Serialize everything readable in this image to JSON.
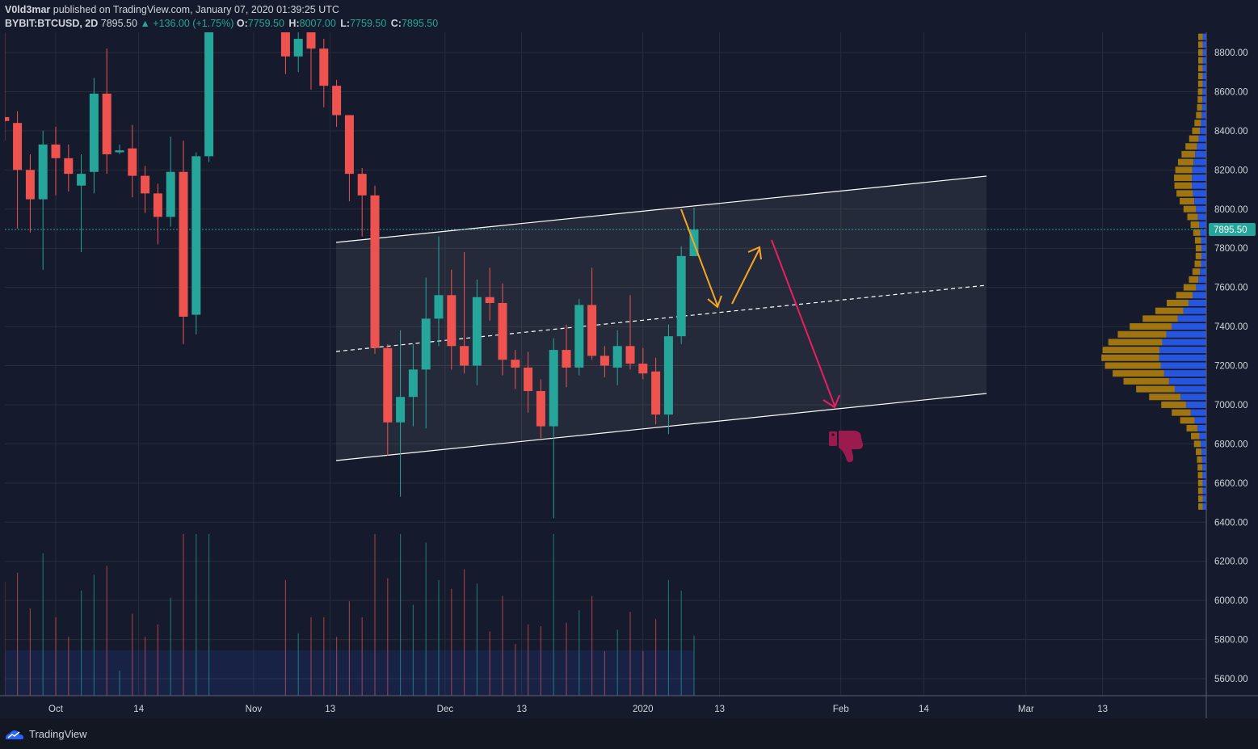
{
  "header": {
    "author": "V0ld3mar",
    "published_text": " published on TradingView.com, January 07, 2020 01:39:25 UTC"
  },
  "legend": {
    "symbol": "BYBIT:BTCUSD, 2D",
    "price": "7895.50",
    "change": "▲ +136.00 (+1.75%)",
    "o_label": "O:",
    "o": "7759.50",
    "h_label": "H:",
    "h": "8007.00",
    "l_label": "L:",
    "l": "7759.50",
    "c_label": "C:",
    "c": "7895.50"
  },
  "footer": {
    "brand": "TradingView"
  },
  "chart_data": {
    "type": "candlestick",
    "title": "BYBIT:BTCUSD, 2D",
    "last_price": 7895.5,
    "last_price_label": "7895.50",
    "ylim": [
      5550,
      8900
    ],
    "y_ticks": [
      5600,
      5800,
      6000,
      6200,
      6400,
      6600,
      6800,
      7000,
      7200,
      7400,
      7600,
      7800,
      8000,
      8200,
      8400,
      8600,
      8800
    ],
    "y_tick_labels": [
      "5600.00",
      "5800.00",
      "6000.00",
      "6200.00",
      "6400.00",
      "6600.00",
      "6800.00",
      "7000.00",
      "7200.00",
      "7400.00",
      "7600.00",
      "7800.00",
      "8000.00",
      "8200.00",
      "8400.00",
      "8600.00",
      "8800.00"
    ],
    "x_tick_labels": [
      "Oct",
      "14",
      "Nov",
      "13",
      "Dec",
      "13",
      "2020",
      "13",
      "Feb",
      "14",
      "Mar",
      "13"
    ],
    "x_tick_dates": [
      "2019-10-01",
      "2019-10-14",
      "2019-11-01",
      "2019-11-13",
      "2019-12-01",
      "2019-12-13",
      "2020-01-01",
      "2020-01-13",
      "2020-02-01",
      "2020-02-14",
      "2020-03-01",
      "2020-03-13"
    ],
    "colors": {
      "up": "#26a69a",
      "down": "#ef5350",
      "background": "#131722",
      "grid": "#2a2e39",
      "channel": "#ffffff",
      "arrow_orange": "#f5a623",
      "arrow_pink": "#e91e63",
      "thumbs_down": "#9c1b4f",
      "vp_up": "#2962ff",
      "vp_down": "#b8860b"
    },
    "candles": [
      {
        "date": "2019-09-23",
        "o": 8470,
        "h": 8900,
        "l": 8350,
        "c": 8450
      },
      {
        "date": "2019-09-25",
        "o": 8440,
        "h": 8500,
        "l": 7900,
        "c": 8200
      },
      {
        "date": "2019-09-27",
        "o": 8200,
        "h": 8280,
        "l": 7880,
        "c": 8050
      },
      {
        "date": "2019-09-29",
        "o": 8050,
        "h": 8400,
        "l": 7690,
        "c": 8330
      },
      {
        "date": "2019-10-01",
        "o": 8330,
        "h": 8420,
        "l": 8070,
        "c": 8260
      },
      {
        "date": "2019-10-03",
        "o": 8260,
        "h": 8330,
        "l": 8090,
        "c": 8180
      },
      {
        "date": "2019-10-05",
        "o": 8120,
        "h": 8280,
        "l": 7780,
        "c": 8180
      },
      {
        "date": "2019-10-07",
        "o": 8190,
        "h": 8670,
        "l": 8080,
        "c": 8590
      },
      {
        "date": "2019-10-09",
        "o": 8590,
        "h": 8820,
        "l": 8180,
        "c": 8280
      },
      {
        "date": "2019-10-11",
        "o": 8290,
        "h": 8330,
        "l": 8280,
        "c": 8300
      },
      {
        "date": "2019-10-13",
        "o": 8310,
        "h": 8430,
        "l": 8060,
        "c": 8170
      },
      {
        "date": "2019-10-15",
        "o": 8170,
        "h": 8220,
        "l": 7980,
        "c": 8080
      },
      {
        "date": "2019-10-17",
        "o": 8080,
        "h": 8130,
        "l": 7820,
        "c": 7960
      },
      {
        "date": "2019-10-19",
        "o": 7960,
        "h": 8370,
        "l": 7910,
        "c": 8190
      },
      {
        "date": "2019-10-21",
        "o": 8190,
        "h": 8350,
        "l": 7310,
        "c": 7450
      },
      {
        "date": "2019-10-23",
        "o": 7460,
        "h": 8290,
        "l": 7360,
        "c": 8270
      },
      {
        "date": "2019-10-25",
        "o": 8270,
        "h": 9100,
        "l": 8240,
        "c": 9000
      },
      {
        "date": "2019-11-06",
        "o": 9010,
        "h": 9250,
        "l": 8690,
        "c": 8780
      },
      {
        "date": "2019-11-08",
        "o": 8780,
        "h": 8960,
        "l": 8700,
        "c": 8870
      },
      {
        "date": "2019-11-10",
        "o": 8950,
        "h": 8960,
        "l": 8610,
        "c": 8820
      },
      {
        "date": "2019-11-12",
        "o": 8820,
        "h": 8870,
        "l": 8520,
        "c": 8630
      },
      {
        "date": "2019-11-14",
        "o": 8630,
        "h": 8660,
        "l": 8420,
        "c": 8480
      },
      {
        "date": "2019-11-16",
        "o": 8480,
        "h": 8480,
        "l": 8040,
        "c": 8180
      },
      {
        "date": "2019-11-18",
        "o": 8180,
        "h": 8210,
        "l": 7860,
        "c": 8070
      },
      {
        "date": "2019-11-20",
        "o": 8070,
        "h": 8120,
        "l": 7260,
        "c": 7290
      },
      {
        "date": "2019-11-22",
        "o": 7290,
        "h": 7310,
        "l": 6740,
        "c": 6910
      },
      {
        "date": "2019-11-24",
        "o": 6910,
        "h": 7380,
        "l": 6530,
        "c": 7040
      },
      {
        "date": "2019-11-26",
        "o": 7040,
        "h": 7310,
        "l": 6890,
        "c": 7180
      },
      {
        "date": "2019-11-28",
        "o": 7180,
        "h": 7650,
        "l": 6880,
        "c": 7440
      },
      {
        "date": "2019-11-30",
        "o": 7440,
        "h": 7860,
        "l": 7300,
        "c": 7560
      },
      {
        "date": "2019-12-02",
        "o": 7560,
        "h": 7690,
        "l": 7180,
        "c": 7300
      },
      {
        "date": "2019-12-04",
        "o": 7300,
        "h": 7780,
        "l": 7160,
        "c": 7200
      },
      {
        "date": "2019-12-06",
        "o": 7200,
        "h": 7640,
        "l": 7100,
        "c": 7550
      },
      {
        "date": "2019-12-08",
        "o": 7550,
        "h": 7700,
        "l": 7430,
        "c": 7520
      },
      {
        "date": "2019-12-10",
        "o": 7520,
        "h": 7620,
        "l": 7150,
        "c": 7230
      },
      {
        "date": "2019-12-12",
        "o": 7230,
        "h": 7280,
        "l": 7080,
        "c": 7190
      },
      {
        "date": "2019-12-14",
        "o": 7190,
        "h": 7270,
        "l": 6960,
        "c": 7070
      },
      {
        "date": "2019-12-16",
        "o": 7070,
        "h": 7130,
        "l": 6830,
        "c": 6890
      },
      {
        "date": "2019-12-18",
        "o": 6890,
        "h": 7340,
        "l": 6420,
        "c": 7280
      },
      {
        "date": "2019-12-20",
        "o": 7280,
        "h": 7410,
        "l": 7090,
        "c": 7190
      },
      {
        "date": "2019-12-22",
        "o": 7190,
        "h": 7540,
        "l": 7150,
        "c": 7510
      },
      {
        "date": "2019-12-24",
        "o": 7510,
        "h": 7700,
        "l": 7230,
        "c": 7250
      },
      {
        "date": "2019-12-26",
        "o": 7250,
        "h": 7300,
        "l": 7140,
        "c": 7200
      },
      {
        "date": "2019-12-28",
        "o": 7190,
        "h": 7380,
        "l": 7100,
        "c": 7300
      },
      {
        "date": "2019-12-30",
        "o": 7300,
        "h": 7560,
        "l": 7180,
        "c": 7210
      },
      {
        "date": "2020-01-01",
        "o": 7210,
        "h": 7290,
        "l": 7130,
        "c": 7160
      },
      {
        "date": "2020-01-03",
        "o": 7170,
        "h": 7240,
        "l": 6900,
        "c": 6950
      },
      {
        "date": "2020-01-05",
        "o": 6950,
        "h": 7410,
        "l": 6850,
        "c": 7350
      },
      {
        "date": "2020-01-07",
        "o": 7350,
        "h": 7810,
        "l": 7310,
        "c": 7760
      },
      {
        "date": "2020-01-09",
        "o": 7759.5,
        "h": 8007,
        "l": 7759.5,
        "c": 7895.5
      }
    ]
  }
}
